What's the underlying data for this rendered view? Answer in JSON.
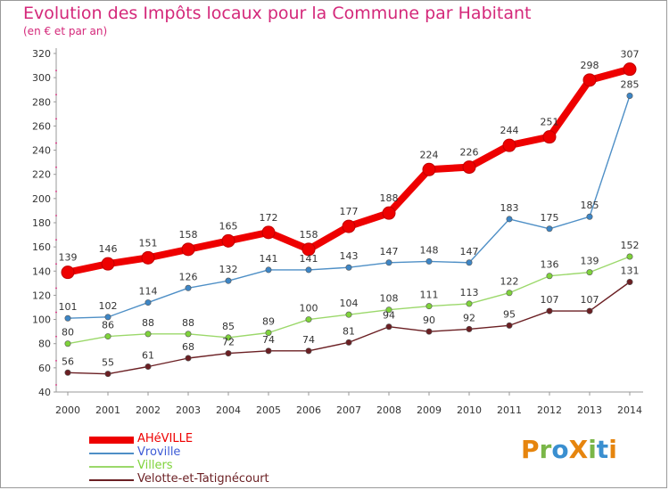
{
  "title": "Evolution des Impôts locaux pour la Commune par Habitant",
  "subtitle": "(en € et par an)",
  "logo_text": "ProXiti",
  "colors": {
    "title": "#d4287a",
    "series": [
      "#ee0000",
      "#4e8fc6",
      "#9bd86a",
      "#6b1f23"
    ],
    "dots": [
      "#ee0000",
      "#3d86c6",
      "#7fd33b",
      "#6b1f23"
    ],
    "legend_text": [
      "#ee0000",
      "#3d5bd6",
      "#7fd33b",
      "#6b1f23"
    ],
    "logo": [
      "#e6850e",
      "#7ab648",
      "#3a8fd0",
      "#e6850e",
      "#7ab648",
      "#3a8fd0",
      "#e6850e"
    ]
  },
  "chart_data": {
    "type": "line",
    "title": "Evolution des Impôts locaux pour la Commune par Habitant",
    "subtitle": "(en € et par an)",
    "xlabel": "",
    "ylabel": "",
    "categories": [
      "2000",
      "2001",
      "2002",
      "2003",
      "2004",
      "2005",
      "2006",
      "2007",
      "2008",
      "2009",
      "2010",
      "2011",
      "2012",
      "2013",
      "2014"
    ],
    "ylim": [
      40,
      320
    ],
    "yticks": [
      40,
      60,
      80,
      100,
      120,
      140,
      160,
      180,
      200,
      220,
      240,
      260,
      280,
      300,
      320
    ],
    "grid": false,
    "legend_position": "bottom-left",
    "series": [
      {
        "name": "AHéVILLE",
        "values": [
          139,
          146,
          151,
          158,
          165,
          172,
          158,
          177,
          188,
          224,
          226,
          244,
          251,
          298,
          307
        ]
      },
      {
        "name": "Vroville",
        "values": [
          101,
          102,
          114,
          126,
          132,
          141,
          141,
          143,
          147,
          148,
          147,
          183,
          175,
          185,
          285
        ]
      },
      {
        "name": "Villers",
        "values": [
          80,
          86,
          88,
          88,
          85,
          89,
          100,
          104,
          108,
          111,
          113,
          122,
          136,
          139,
          152
        ]
      },
      {
        "name": "Velotte-et-Tatignécourt",
        "values": [
          56,
          55,
          61,
          68,
          72,
          74,
          74,
          81,
          94,
          90,
          92,
          95,
          107,
          107,
          131
        ]
      }
    ]
  }
}
